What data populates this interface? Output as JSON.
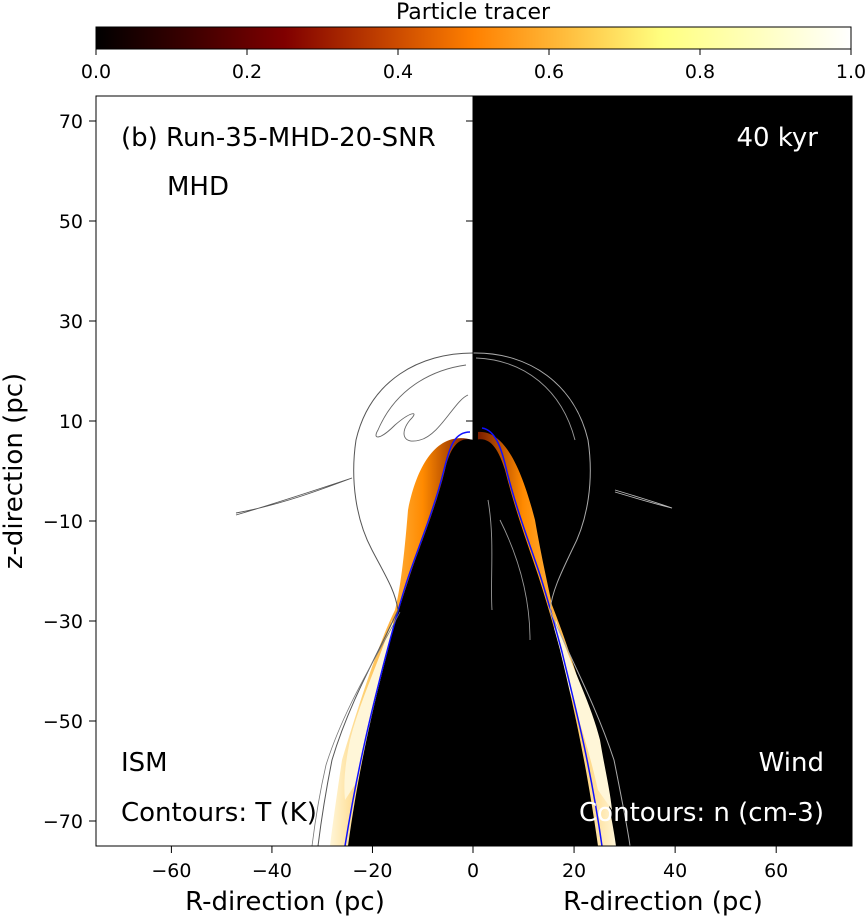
{
  "chart_data": {
    "type": "heatmap",
    "colorbar": {
      "label": "Particle tracer",
      "range": [
        0.0,
        1.0
      ],
      "ticks": [
        "0.0",
        "0.2",
        "0.4",
        "0.6",
        "0.8",
        "1.0"
      ],
      "colormap": "afmhot",
      "placement": "top"
    },
    "title": "(b) Run-35-MHD-20-SNR",
    "subtitle": "MHD",
    "time_label": "40 kyr",
    "panels": [
      {
        "side": "left",
        "region_label": "ISM",
        "contour_label": "Contours: T (K)",
        "xlabel": "R-direction (pc)",
        "xlim": [
          -75,
          0
        ],
        "xticks": [
          "−60",
          "−40",
          "−20",
          "0"
        ]
      },
      {
        "side": "right",
        "region_label": "Wind",
        "contour_label": "Contours: n (cm-3)",
        "xlabel": "R-direction (pc)",
        "xlim": [
          0,
          75
        ],
        "xticks": [
          "20",
          "40",
          "60"
        ]
      }
    ],
    "ylabel": "z-direction (pc)",
    "ylim": [
      -75,
      75
    ],
    "yticks": [
      "70",
      "50",
      "30",
      "10",
      "−10",
      "−30",
      "−50",
      "−70"
    ],
    "colors": {
      "ambient_left": "#ffffff",
      "ambient_right": "#000000",
      "cavity": "#000000",
      "shell_bright": "#fff6d8",
      "shell_orange": "#ff8a00",
      "shell_dark": "#8a1800",
      "contour_blue": "#1010ff",
      "contour_gray": "#888888"
    }
  }
}
